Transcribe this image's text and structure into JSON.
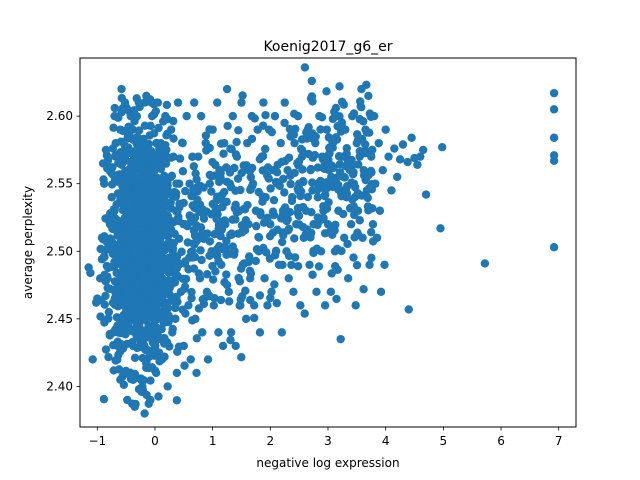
{
  "chart_data": {
    "type": "scatter",
    "title": "Koenig2017_g6_er",
    "xlabel": "negative log expression",
    "ylabel": "average perplexity",
    "xlim": [
      -1.3,
      7.3
    ],
    "ylim": [
      2.37,
      2.643
    ],
    "x_ticks": [
      -1,
      0,
      1,
      2,
      3,
      4,
      5,
      6,
      7
    ],
    "y_ticks": [
      2.4,
      2.45,
      2.5,
      2.55,
      2.6
    ],
    "x_tick_labels": [
      "−1",
      "0",
      "1",
      "2",
      "3",
      "4",
      "5",
      "6",
      "7"
    ],
    "y_tick_labels": [
      "2.40",
      "2.45",
      "2.50",
      "2.55",
      "2.60"
    ],
    "grid": false,
    "marker_color": "#1f77b4",
    "series": [
      {
        "points": [
          [
            -1.15,
            2.488
          ],
          [
            -1.12,
            2.484
          ],
          [
            -1.08,
            2.42
          ],
          [
            -1.02,
            2.462
          ],
          [
            -1.0,
            2.465
          ],
          [
            -0.95,
            2.48
          ],
          [
            -0.92,
            2.51
          ],
          [
            -0.9,
            2.565
          ],
          [
            -0.88,
            2.55
          ],
          [
            -0.85,
            2.575
          ],
          [
            -0.82,
            2.48
          ],
          [
            -0.8,
            2.455
          ],
          [
            -0.78,
            2.52
          ],
          [
            -0.75,
            2.54
          ],
          [
            -0.72,
            2.44
          ],
          [
            -0.7,
            2.6
          ],
          [
            -0.68,
            2.58
          ],
          [
            -0.65,
            2.43
          ],
          [
            -0.62,
            2.5
          ],
          [
            -0.6,
            2.59
          ],
          [
            -0.6,
            2.405
          ],
          [
            -0.58,
            2.62
          ],
          [
            -0.55,
            2.46
          ],
          [
            -0.52,
            2.61
          ],
          [
            -0.5,
            2.55
          ],
          [
            -0.48,
            2.39
          ],
          [
            -0.45,
            2.47
          ],
          [
            -0.42,
            2.6
          ],
          [
            -0.4,
            2.52
          ],
          [
            -0.38,
            2.43
          ],
          [
            -0.35,
            2.385
          ],
          [
            -0.32,
            2.57
          ],
          [
            -0.3,
            2.45
          ],
          [
            -0.28,
            2.61
          ],
          [
            -0.25,
            2.5
          ],
          [
            -0.22,
            2.4
          ],
          [
            -0.2,
            2.56
          ],
          [
            -0.18,
            2.38
          ],
          [
            -0.15,
            2.615
          ],
          [
            -0.12,
            2.47
          ],
          [
            -0.1,
            2.53
          ],
          [
            -0.08,
            2.39
          ],
          [
            -0.05,
            2.6
          ],
          [
            -0.02,
            2.44
          ],
          [
            0.0,
            2.56
          ],
          [
            0.02,
            2.41
          ],
          [
            0.05,
            2.61
          ],
          [
            0.08,
            2.48
          ],
          [
            0.1,
            2.58
          ],
          [
            0.12,
            2.42
          ],
          [
            0.15,
            2.54
          ],
          [
            0.18,
            2.6
          ],
          [
            0.2,
            2.46
          ],
          [
            0.22,
            2.4
          ],
          [
            0.25,
            2.52
          ],
          [
            0.28,
            2.59
          ],
          [
            0.3,
            2.44
          ],
          [
            0.32,
            2.57
          ],
          [
            0.35,
            2.49
          ],
          [
            0.38,
            2.41
          ],
          [
            0.4,
            2.61
          ],
          [
            0.42,
            2.55
          ],
          [
            0.45,
            2.47
          ],
          [
            0.48,
            2.58
          ],
          [
            0.5,
            2.43
          ],
          [
            0.52,
            2.52
          ],
          [
            0.55,
            2.6
          ],
          [
            0.58,
            2.46
          ],
          [
            0.6,
            2.55
          ],
          [
            0.62,
            2.42
          ],
          [
            0.65,
            2.5
          ],
          [
            0.68,
            2.61
          ],
          [
            0.7,
            2.45
          ],
          [
            0.72,
            2.41
          ],
          [
            0.75,
            2.57
          ],
          [
            0.78,
            2.48
          ],
          [
            0.8,
            2.6
          ],
          [
            0.82,
            2.44
          ],
          [
            0.85,
            2.53
          ],
          [
            0.88,
            2.58
          ],
          [
            0.9,
            2.47
          ],
          [
            0.92,
            2.42
          ],
          [
            0.95,
            2.55
          ],
          [
            0.98,
            2.5
          ],
          [
            1.0,
            2.59
          ],
          [
            1.02,
            2.46
          ],
          [
            1.05,
            2.53
          ],
          [
            1.08,
            2.61
          ],
          [
            1.1,
            2.44
          ],
          [
            1.12,
            2.56
          ],
          [
            1.15,
            2.49
          ],
          [
            1.18,
            2.43
          ],
          [
            1.2,
            2.58
          ],
          [
            1.22,
            2.52
          ],
          [
            1.25,
            2.62
          ],
          [
            1.28,
            2.47
          ],
          [
            1.3,
            2.55
          ],
          [
            1.32,
            2.44
          ],
          [
            1.35,
            2.6
          ],
          [
            1.38,
            2.5
          ],
          [
            1.4,
            2.43
          ],
          [
            1.42,
            2.57
          ],
          [
            1.45,
            2.53
          ],
          [
            1.48,
            2.46
          ],
          [
            1.5,
            2.61
          ],
          [
            1.52,
            2.49
          ],
          [
            1.55,
            2.56
          ],
          [
            1.58,
            2.45
          ],
          [
            1.6,
            2.58
          ],
          [
            1.62,
            2.52
          ],
          [
            1.65,
            2.48
          ],
          [
            1.68,
            2.6
          ],
          [
            1.7,
            2.55
          ],
          [
            1.72,
            2.46
          ],
          [
            1.75,
            2.53
          ],
          [
            1.78,
            2.59
          ],
          [
            1.8,
            2.5
          ],
          [
            1.82,
            2.44
          ],
          [
            1.85,
            2.57
          ],
          [
            1.88,
            2.61
          ],
          [
            1.9,
            2.48
          ],
          [
            1.92,
            2.54
          ],
          [
            1.95,
            2.46
          ],
          [
            1.98,
            2.59
          ],
          [
            2.0,
            2.52
          ],
          [
            2.02,
            2.47
          ],
          [
            2.05,
            2.56
          ],
          [
            2.08,
            2.6
          ],
          [
            2.1,
            2.5
          ],
          [
            2.12,
            2.55
          ],
          [
            2.15,
            2.49
          ],
          [
            2.18,
            2.58
          ],
          [
            2.2,
            2.44
          ],
          [
            2.22,
            2.53
          ],
          [
            2.25,
            2.61
          ],
          [
            2.28,
            2.5
          ],
          [
            2.3,
            2.56
          ],
          [
            2.32,
            2.48
          ],
          [
            2.35,
            2.59
          ],
          [
            2.38,
            2.54
          ],
          [
            2.4,
            2.47
          ],
          [
            2.42,
            2.58
          ],
          [
            2.45,
            2.52
          ],
          [
            2.48,
            2.6
          ],
          [
            2.5,
            2.55
          ],
          [
            2.52,
            2.46
          ],
          [
            2.55,
            2.57
          ],
          [
            2.58,
            2.51
          ],
          [
            2.6,
            2.636
          ],
          [
            2.62,
            2.53
          ],
          [
            2.65,
            2.59
          ],
          [
            2.68,
            2.49
          ],
          [
            2.7,
            2.56
          ],
          [
            2.72,
            2.626
          ],
          [
            2.75,
            2.52
          ],
          [
            2.78,
            2.58
          ],
          [
            2.8,
            2.47
          ],
          [
            2.82,
            2.55
          ],
          [
            2.85,
            2.6
          ],
          [
            2.88,
            2.5
          ],
          [
            2.9,
            2.57
          ],
          [
            2.92,
            2.53
          ],
          [
            2.95,
            2.46
          ],
          [
            2.98,
            2.59
          ],
          [
            3.0,
            2.52
          ],
          [
            3.02,
            2.56
          ],
          [
            3.05,
            2.47
          ],
          [
            3.08,
            2.58
          ],
          [
            3.1,
            2.55
          ],
          [
            3.12,
            2.5
          ],
          [
            3.15,
            2.6
          ],
          [
            3.18,
            2.53
          ],
          [
            3.2,
            2.622
          ],
          [
            3.22,
            2.435
          ],
          [
            3.25,
            2.57
          ],
          [
            3.28,
            2.51
          ],
          [
            3.3,
            2.59
          ],
          [
            3.32,
            2.54
          ],
          [
            3.35,
            2.48
          ],
          [
            3.38,
            2.56
          ],
          [
            3.4,
            2.52
          ],
          [
            3.42,
            2.6
          ],
          [
            3.45,
            2.55
          ],
          [
            3.48,
            2.46
          ],
          [
            3.5,
            2.58
          ],
          [
            3.52,
            2.53
          ],
          [
            3.55,
            2.57
          ],
          [
            3.58,
            2.62
          ],
          [
            3.6,
            2.51
          ],
          [
            3.62,
            2.56
          ],
          [
            3.65,
            2.59
          ],
          [
            3.68,
            2.54
          ],
          [
            3.7,
            2.615
          ],
          [
            3.72,
            2.49
          ],
          [
            3.75,
            2.57
          ],
          [
            3.78,
            2.52
          ],
          [
            3.8,
            2.6
          ],
          [
            3.82,
            2.55
          ],
          [
            3.85,
            2.51
          ],
          [
            3.88,
            2.58
          ],
          [
            3.9,
            2.53
          ],
          [
            3.92,
            2.47
          ],
          [
            3.95,
            2.56
          ],
          [
            3.98,
            2.49
          ],
          [
            4.0,
            2.59
          ],
          [
            4.05,
            2.57
          ],
          [
            4.1,
            2.545
          ],
          [
            4.15,
            2.576
          ],
          [
            4.2,
            2.555
          ],
          [
            4.25,
            2.568
          ],
          [
            4.3,
            2.579
          ],
          [
            4.38,
            2.566
          ],
          [
            4.4,
            2.457
          ],
          [
            4.45,
            2.584
          ],
          [
            4.5,
            2.569
          ],
          [
            4.55,
            2.564
          ],
          [
            4.6,
            2.57
          ],
          [
            4.65,
            2.575
          ],
          [
            4.7,
            2.542
          ],
          [
            4.95,
            2.517
          ],
          [
            4.98,
            2.577
          ],
          [
            5.72,
            2.491
          ],
          [
            6.92,
            2.503
          ],
          [
            6.92,
            2.567
          ],
          [
            6.92,
            2.571
          ],
          [
            6.92,
            2.584
          ],
          [
            6.92,
            2.605
          ],
          [
            6.92,
            2.617
          ]
        ]
      }
    ]
  }
}
